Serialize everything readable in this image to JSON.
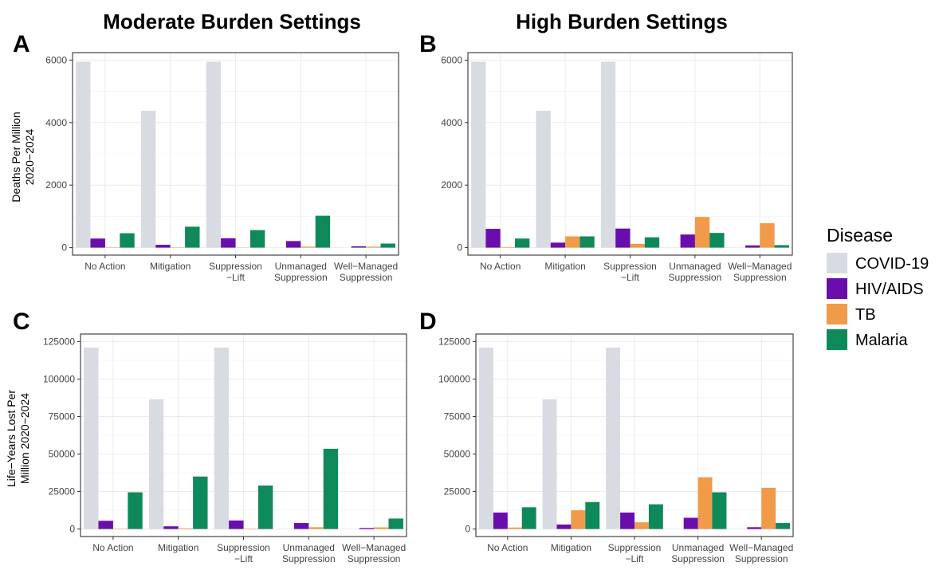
{
  "column_titles": [
    "Moderate Burden Settings",
    "High Burden Settings"
  ],
  "legend": {
    "title": "Disease",
    "placement": "right",
    "entries": [
      {
        "name": "COVID-19",
        "color": "#d9dbe3"
      },
      {
        "name": "HIV/AIDS",
        "color": "#6a0dad"
      },
      {
        "name": "TB",
        "color": "#f09a4a"
      },
      {
        "name": "Malaria",
        "color": "#0e8a5a"
      }
    ]
  },
  "y_labels": {
    "deaths": [
      "Deaths Per Million",
      "2020−2024"
    ],
    "lyl": [
      "Life−Years Lost Per",
      "Million 2020−2024"
    ]
  },
  "chart_data": [
    {
      "panel": "A",
      "type": "bar",
      "grid": true,
      "categories": [
        [
          "No Action"
        ],
        [
          "Mitigation"
        ],
        [
          "Suppression",
          "−Lift"
        ],
        [
          "Unmanaged",
          "Suppression"
        ],
        [
          "Well−Managed",
          "Suppression"
        ]
      ],
      "ylim": [
        0,
        6000
      ],
      "yticks": [
        0,
        2000,
        4000,
        6000
      ],
      "series": [
        {
          "name": "COVID-19",
          "values": [
            5950,
            4380,
            5950,
            0,
            0
          ]
        },
        {
          "name": "HIV/AIDS",
          "values": [
            290,
            90,
            300,
            210,
            40
          ]
        },
        {
          "name": "TB",
          "values": [
            10,
            10,
            5,
            30,
            30
          ]
        },
        {
          "name": "Malaria",
          "values": [
            460,
            670,
            560,
            1020,
            130
          ]
        }
      ]
    },
    {
      "panel": "B",
      "type": "bar",
      "grid": true,
      "categories": [
        [
          "No Action"
        ],
        [
          "Mitigation"
        ],
        [
          "Suppression",
          "−Lift"
        ],
        [
          "Unmanaged",
          "Suppression"
        ],
        [
          "Well−Managed",
          "Suppression"
        ]
      ],
      "ylim": [
        0,
        6000
      ],
      "yticks": [
        0,
        2000,
        4000,
        6000
      ],
      "series": [
        {
          "name": "COVID-19",
          "values": [
            5950,
            4380,
            5950,
            0,
            0
          ]
        },
        {
          "name": "HIV/AIDS",
          "values": [
            600,
            160,
            610,
            420,
            70
          ]
        },
        {
          "name": "TB",
          "values": [
            20,
            360,
            120,
            980,
            780
          ]
        },
        {
          "name": "Malaria",
          "values": [
            290,
            360,
            330,
            470,
            80
          ]
        }
      ]
    },
    {
      "panel": "C",
      "type": "bar",
      "grid": true,
      "categories": [
        [
          "No Action"
        ],
        [
          "Mitigation"
        ],
        [
          "Suppression",
          "−Lift"
        ],
        [
          "Unmanaged",
          "Suppression"
        ],
        [
          "Well−Managed",
          "Suppression"
        ]
      ],
      "ylim": [
        0,
        125000
      ],
      "yticks": [
        0,
        25000,
        50000,
        75000,
        100000,
        125000
      ],
      "series": [
        {
          "name": "COVID-19",
          "values": [
            121000,
            86500,
            121000,
            0,
            0
          ]
        },
        {
          "name": "HIV/AIDS",
          "values": [
            5500,
            1800,
            5700,
            4000,
            700
          ]
        },
        {
          "name": "TB",
          "values": [
            300,
            500,
            300,
            1200,
            1100
          ]
        },
        {
          "name": "Malaria",
          "values": [
            24500,
            35000,
            29000,
            53500,
            7000
          ]
        }
      ]
    },
    {
      "panel": "D",
      "type": "bar",
      "grid": true,
      "categories": [
        [
          "No Action"
        ],
        [
          "Mitigation"
        ],
        [
          "Suppression",
          "−Lift"
        ],
        [
          "Unmanaged",
          "Suppression"
        ],
        [
          "Well−Managed",
          "Suppression"
        ]
      ],
      "ylim": [
        0,
        125000
      ],
      "yticks": [
        0,
        25000,
        50000,
        75000,
        100000,
        125000
      ],
      "series": [
        {
          "name": "COVID-19",
          "values": [
            121000,
            86500,
            121000,
            0,
            0
          ]
        },
        {
          "name": "HIV/AIDS",
          "values": [
            11000,
            3000,
            11000,
            7500,
            1200
          ]
        },
        {
          "name": "TB",
          "values": [
            1000,
            12500,
            4500,
            34500,
            27500
          ]
        },
        {
          "name": "Malaria",
          "values": [
            14500,
            18000,
            16500,
            24500,
            4000
          ]
        }
      ]
    }
  ]
}
